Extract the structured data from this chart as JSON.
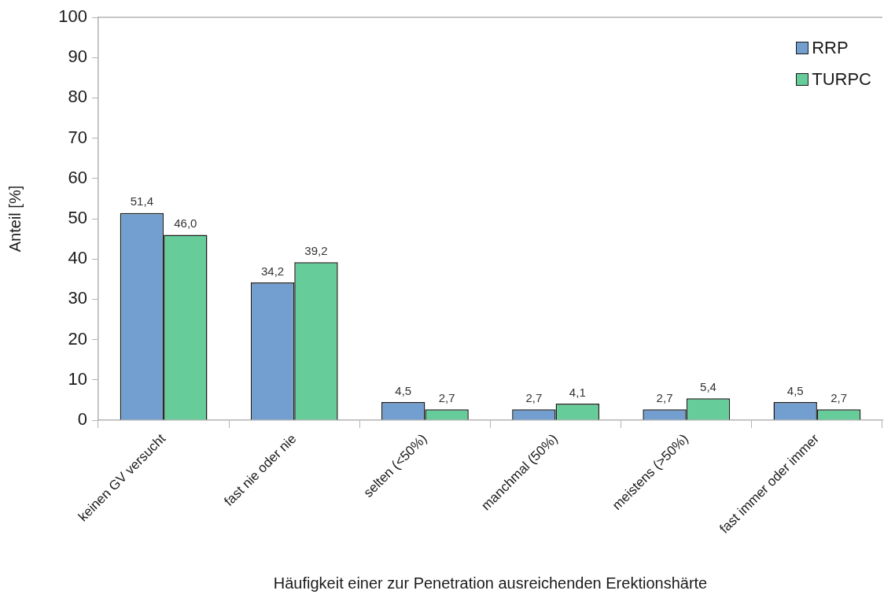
{
  "chart_data": {
    "type": "bar",
    "xlabel": "Häufigkeit einer zur Penetration ausreichenden Erektionshärte",
    "ylabel": "Anteil [%]",
    "categories": [
      "keinen GV versucht",
      "fast nie oder nie",
      "selten (<50%)",
      "manchmal (50%)",
      "meistens (>50%)",
      "fast immer oder immer"
    ],
    "series": [
      {
        "name": "RRP",
        "color": "#729fcf",
        "values": [
          51.4,
          34.2,
          4.5,
          2.7,
          2.7,
          4.5
        ],
        "value_labels": [
          "51,4",
          "34,2",
          "4,5",
          "2,7",
          "2,7",
          "4,5"
        ]
      },
      {
        "name": "TURPC",
        "color": "#66cc99",
        "values": [
          46.0,
          39.2,
          2.7,
          4.1,
          5.4,
          2.7
        ],
        "value_labels": [
          "46,0",
          "39,2",
          "2,7",
          "4,1",
          "5,4",
          "2,7"
        ]
      }
    ],
    "ylim": [
      0,
      100
    ],
    "yticks": [
      0,
      10,
      20,
      30,
      40,
      50,
      60,
      70,
      80,
      90,
      100
    ],
    "legend": "top right"
  }
}
